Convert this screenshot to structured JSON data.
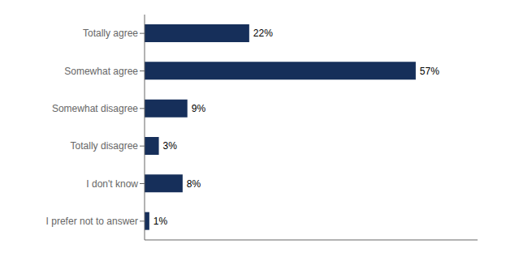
{
  "chart_data": {
    "type": "bar",
    "orientation": "horizontal",
    "categories": [
      "Totally agree",
      "Somewhat agree",
      "Somewhat disagree",
      "Totally disagree",
      "I don't know",
      "I prefer not to answer"
    ],
    "values": [
      22,
      57,
      9,
      3,
      8,
      1
    ],
    "value_labels": [
      "22%",
      "57%",
      "9%",
      "3%",
      "8%",
      "1%"
    ],
    "data_labels": true,
    "color": "#162f5a",
    "xlim": [
      0,
      70
    ],
    "grid": false,
    "tick_labels": "y"
  }
}
